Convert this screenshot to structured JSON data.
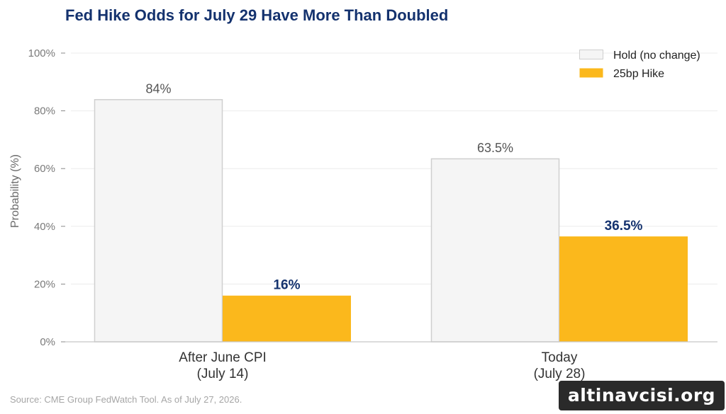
{
  "chart_data": {
    "type": "bar",
    "title": "Fed Hike Odds for July 29 Have More Than Doubled",
    "ylabel": "Probability (%)",
    "xlabel": "",
    "ylim": [
      0,
      100
    ],
    "yticks": [
      0,
      20,
      40,
      60,
      80,
      100
    ],
    "ytick_labels": [
      "0%",
      "20%",
      "40%",
      "60%",
      "80%",
      "100%"
    ],
    "grid": "horizontal",
    "legend_position": "top-right",
    "categories": [
      [
        "After June CPI",
        "(July 14)"
      ],
      [
        "Today",
        "(July 28)"
      ]
    ],
    "series": [
      {
        "name": "Hold (no change)",
        "values": [
          84,
          63.5
        ],
        "labels": [
          "84%",
          "63.5%"
        ],
        "color": "#f5f5f5",
        "stroke": "#cfcfcf"
      },
      {
        "name": "25bp Hike",
        "values": [
          16,
          36.5
        ],
        "labels": [
          "16%",
          "36.5%"
        ],
        "color": "#fbb81c",
        "stroke": "#fbb81c"
      }
    ],
    "source": "Source: CME Group FedWatch Tool. As of July 27, 2026."
  },
  "watermark": "altinavcisi.org"
}
